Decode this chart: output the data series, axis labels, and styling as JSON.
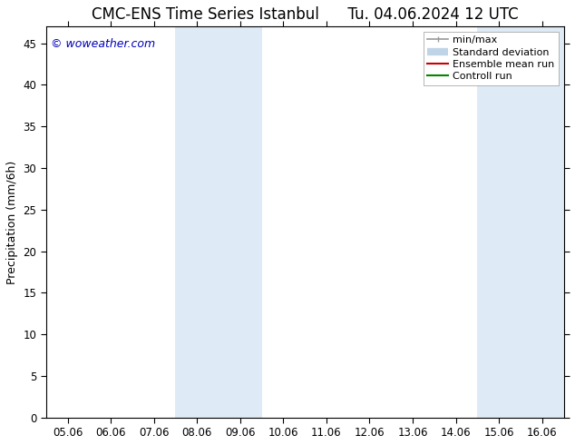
{
  "title_left": "CMC-ENS Time Series Istanbul",
  "title_right": "Tu. 04.06.2024 12 UTC",
  "ylabel": "Precipitation (mm/6h)",
  "watermark": "© woweather.com",
  "x_tick_labels": [
    "05.06",
    "06.06",
    "07.06",
    "08.06",
    "09.06",
    "10.06",
    "11.06",
    "12.06",
    "13.06",
    "14.06",
    "15.06",
    "16.06"
  ],
  "ylim": [
    0,
    47
  ],
  "yticks": [
    0,
    5,
    10,
    15,
    20,
    25,
    30,
    35,
    40,
    45
  ],
  "num_ticks": 12,
  "shaded_regions": [
    {
      "xmin": 3,
      "xmax": 5,
      "color": "#deeaf5"
    },
    {
      "xmin": 10,
      "xmax": 12,
      "color": "#deeaf5"
    }
  ],
  "legend_items": [
    {
      "label": "min/max",
      "color": "#999999",
      "lw": 1.2,
      "style": "minmax"
    },
    {
      "label": "Standard deviation",
      "color": "#c0d4e8",
      "lw": 6,
      "style": "band"
    },
    {
      "label": "Ensemble mean run",
      "color": "#cc0000",
      "lw": 1.5,
      "style": "line"
    },
    {
      "label": "Controll run",
      "color": "#008800",
      "lw": 1.5,
      "style": "line"
    }
  ],
  "background_color": "#ffffff",
  "plot_bg_color": "#ffffff",
  "border_color": "#000000",
  "watermark_color": "#0000bb",
  "title_fontsize": 12,
  "legend_fontsize": 8,
  "label_fontsize": 9,
  "tick_fontsize": 8.5,
  "watermark_fontsize": 9
}
